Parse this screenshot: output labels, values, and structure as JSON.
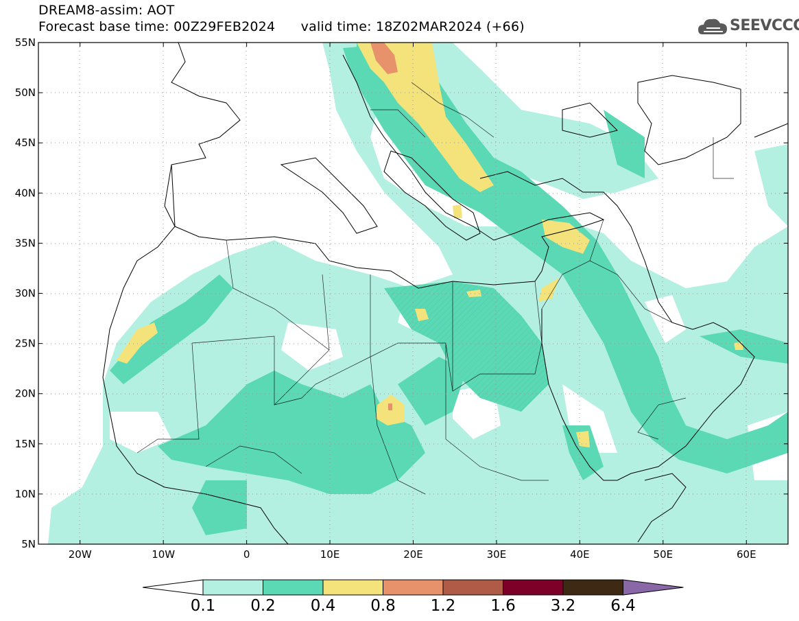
{
  "header": {
    "title_line1": "DREAM8-assim: AOT",
    "title_line2": "Forecast base time: 00Z29FEB2024      valid time: 18Z02MAR2024 (+66)"
  },
  "logo": {
    "text": "SEEVCCC",
    "icon": "cloud-icon"
  },
  "map": {
    "lat_labels": [
      "55N",
      "50N",
      "45N",
      "40N",
      "35N",
      "30N",
      "25N",
      "20N",
      "15N",
      "10N",
      "5N"
    ],
    "lon_labels": [
      "20W",
      "10W",
      "0",
      "10E",
      "20E",
      "30E",
      "40E",
      "50E",
      "60E"
    ],
    "extent": {
      "lon": [
        -25,
        65
      ],
      "lat": [
        5,
        55
      ]
    }
  },
  "colorbar": {
    "colors": [
      "#ffffff",
      "#b4f0e2",
      "#5ad9b4",
      "#f3e37a",
      "#e8926b",
      "#b05a48",
      "#7d0028",
      "#3e2a14",
      "#8a68a8"
    ],
    "labels": [
      "0.1",
      "0.2",
      "0.4",
      "0.8",
      "1.2",
      "1.6",
      "3.2",
      "6.4"
    ]
  }
}
